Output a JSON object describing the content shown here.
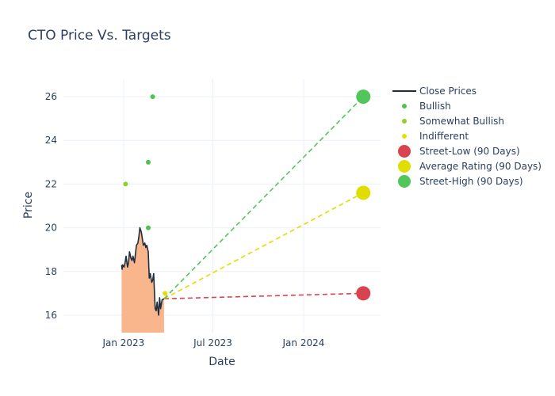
{
  "chart_data": {
    "type": "line",
    "title": "CTO Price Vs. Targets",
    "xlabel": "Date",
    "ylabel": "Price",
    "xlim": [
      "2022-09-01",
      "2024-06-05"
    ],
    "ylim": [
      15.2,
      26.8
    ],
    "x_ticks": [
      {
        "date": "2023-01-01",
        "label": "Jan 2023"
      },
      {
        "date": "2023-07-01",
        "label": "Jul 2023"
      },
      {
        "date": "2024-01-01",
        "label": "Jan 2024"
      }
    ],
    "y_ticks": [
      16,
      18,
      20,
      22,
      24,
      26
    ],
    "grid": true,
    "legend_position": "right",
    "colors": {
      "close": "#1f2d3d",
      "fill": "#f9b68d",
      "bullish": "#4fc34f",
      "somewhat_bullish": "#8fd129",
      "indifferent": "#e3e000",
      "street_low": "#d9434f",
      "average": "#e2dd00",
      "street_high": "#52c65a"
    },
    "series": [
      {
        "name": "Close Prices",
        "kind": "line",
        "points": [
          [
            "2022-12-28",
            18.3
          ],
          [
            "2022-12-29",
            18.1
          ],
          [
            "2022-12-30",
            18.3
          ],
          [
            "2023-01-02",
            18.2
          ],
          [
            "2023-01-04",
            18.4
          ],
          [
            "2023-01-06",
            18.7
          ],
          [
            "2023-01-09",
            18.2
          ],
          [
            "2023-01-11",
            18.4
          ],
          [
            "2023-01-13",
            18.9
          ],
          [
            "2023-01-16",
            18.6
          ],
          [
            "2023-01-18",
            18.5
          ],
          [
            "2023-01-20",
            18.7
          ],
          [
            "2023-01-23",
            18.4
          ],
          [
            "2023-01-25",
            18.8
          ],
          [
            "2023-01-27",
            19.2
          ],
          [
            "2023-01-30",
            19.3
          ],
          [
            "2023-02-01",
            19.6
          ],
          [
            "2023-02-03",
            20.0
          ],
          [
            "2023-02-06",
            19.8
          ],
          [
            "2023-02-08",
            19.5
          ],
          [
            "2023-02-10",
            19.2
          ],
          [
            "2023-02-13",
            19.3
          ],
          [
            "2023-02-15",
            19.1
          ],
          [
            "2023-02-17",
            19.2
          ],
          [
            "2023-02-20",
            18.9
          ],
          [
            "2023-02-22",
            17.7
          ],
          [
            "2023-02-24",
            17.9
          ],
          [
            "2023-02-27",
            17.5
          ],
          [
            "2023-03-01",
            17.6
          ],
          [
            "2023-03-03",
            17.9
          ],
          [
            "2023-03-06",
            16.3
          ],
          [
            "2023-03-08",
            16.2
          ],
          [
            "2023-03-10",
            16.6
          ],
          [
            "2023-03-13",
            16.0
          ],
          [
            "2023-03-15",
            16.8
          ],
          [
            "2023-03-17",
            16.3
          ],
          [
            "2023-03-20",
            16.7
          ],
          [
            "2023-03-24",
            16.75
          ]
        ]
      },
      {
        "name": "Bullish",
        "kind": "markers",
        "points": [
          [
            "2023-02-20",
            20.0
          ],
          [
            "2023-02-20",
            23.0
          ],
          [
            "2023-03-01",
            26.0
          ]
        ]
      },
      {
        "name": "Somewhat Bullish",
        "kind": "markers",
        "points": [
          [
            "2023-01-05",
            22.0
          ]
        ]
      },
      {
        "name": "Indifferent",
        "kind": "markers",
        "points": [
          [
            "2023-03-26",
            17.0
          ]
        ]
      },
      {
        "name": "Street-Low (90 Days)",
        "kind": "target",
        "points": [
          [
            "2023-03-24",
            16.75
          ],
          [
            "2024-05-01",
            17.0
          ]
        ]
      },
      {
        "name": "Average Rating (90 Days)",
        "kind": "target",
        "points": [
          [
            "2023-03-24",
            16.75
          ],
          [
            "2024-05-01",
            21.6
          ]
        ]
      },
      {
        "name": "Street-High (90 Days)",
        "kind": "target",
        "points": [
          [
            "2023-03-24",
            16.75
          ],
          [
            "2024-05-01",
            26.0
          ]
        ]
      }
    ]
  }
}
